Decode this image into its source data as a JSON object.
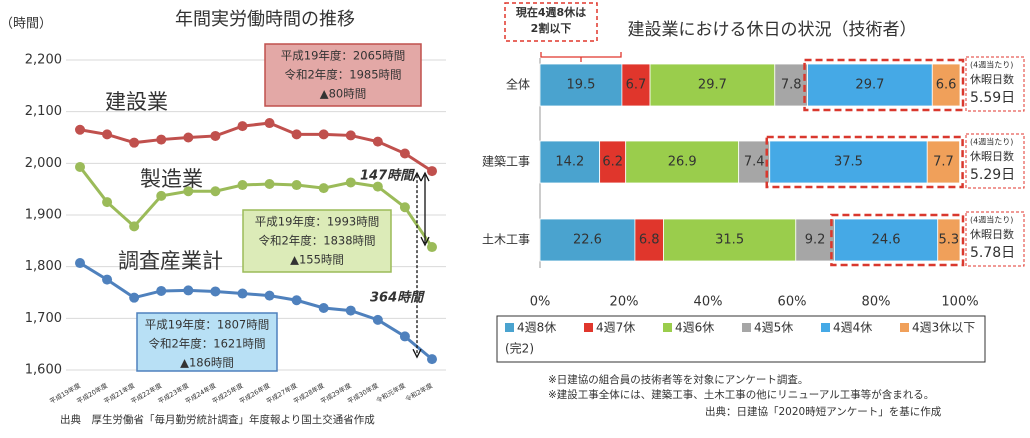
{
  "chart_data": [
    {
      "type": "line",
      "title": "年間実労働時間の推移",
      "y_label": "（時間）",
      "categories": [
        "平成19年度",
        "平成20年度",
        "平成21年度",
        "平成22年度",
        "平成23年度",
        "平成24年度",
        "平成25年度",
        "平成26年度",
        "平成27年度",
        "平成28年度",
        "平成29年度",
        "平成30年度",
        "令和元年度",
        "令和2年度"
      ],
      "series": [
        {
          "name": "建設業",
          "color": "#c0504d",
          "values": [
            2065,
            2056,
            2040,
            2046,
            2050,
            2053,
            2072,
            2078,
            2056,
            2056,
            2054,
            2042,
            2019,
            1985
          ]
        },
        {
          "name": "製造業",
          "color": "#9bbb59",
          "values": [
            1993,
            1925,
            1878,
            1937,
            1946,
            1946,
            1958,
            1960,
            1958,
            1952,
            1963,
            1955,
            1915,
            1838
          ]
        },
        {
          "name": "調査産業計",
          "color": "#4f81bd",
          "values": [
            1807,
            1775,
            1740,
            1753,
            1754,
            1752,
            1748,
            1744,
            1735,
            1720,
            1715,
            1697,
            1665,
            1621
          ]
        }
      ],
      "ylim": [
        1600,
        2200
      ],
      "yticks": [
        {
          "value": 1600,
          "label": "1,600"
        },
        {
          "value": 1700,
          "label": "1,700"
        },
        {
          "value": 1800,
          "label": "1,800"
        },
        {
          "value": 1900,
          "label": "1,900"
        },
        {
          "value": 2000,
          "label": "2,000"
        },
        {
          "value": 2100,
          "label": "2,100"
        },
        {
          "value": 2200,
          "label": "2,200"
        }
      ],
      "grid": true,
      "callouts": [
        [
          "平成19年度：2065時間",
          "令和2年度：1985時間",
          "▲80時間"
        ],
        [
          "平成19年度：1993時間",
          "令和2年度：1838時間",
          "▲155時間"
        ],
        [
          "平成19年度：1807時間",
          "令和2年度：1621時間",
          "▲186時間"
        ]
      ],
      "gaps": [
        "147時間",
        "364時間"
      ],
      "source": "出典　厚生労働省「毎月勤労統計調査」年度報より国土交通省作成"
    },
    {
      "type": "stacked_bar_horizontal",
      "title": "建設業における休日の状況（技術者）",
      "categories": [
        "全体",
        "建築工事",
        "土木工事"
      ],
      "series": [
        {
          "name": "4週8休",
          "color": "#4aa3cf",
          "values": [
            19.5,
            14.2,
            22.6
          ]
        },
        {
          "name": "4週7休",
          "color": "#e0362c",
          "values": [
            6.7,
            6.2,
            6.8
          ]
        },
        {
          "name": "4週6休",
          "color": "#9acd4c",
          "values": [
            29.7,
            26.9,
            31.5
          ]
        },
        {
          "name": "4週5休",
          "color": "#a6a6a6",
          "values": [
            7.8,
            7.4,
            9.2
          ]
        },
        {
          "name": "4週4休",
          "color": "#45a9e6",
          "values": [
            29.7,
            37.5,
            24.6
          ]
        },
        {
          "name": "4週3休以下",
          "color": "#f0a05a",
          "values": [
            6.6,
            7.7,
            5.3
          ]
        }
      ],
      "xlim": [
        0,
        100
      ],
      "xticks": [
        {
          "value": 0,
          "label": "0%"
        },
        {
          "value": 20,
          "label": "20%"
        },
        {
          "value": 40,
          "label": "40%"
        },
        {
          "value": 60,
          "label": "60%"
        },
        {
          "value": 80,
          "label": "80%"
        },
        {
          "value": 100,
          "label": "100%"
        }
      ],
      "legend_note": "(完2)",
      "callout": [
        "現在4週8休は",
        "2割以下"
      ],
      "side_notes": [
        [
          "(4週当たり)",
          "休暇日数",
          "5.59日"
        ],
        [
          "(4週当たり)",
          "休暇日数",
          "5.29日"
        ],
        [
          "(4週当たり)",
          "休暇日数",
          "5.78日"
        ]
      ],
      "notes": [
        "※日建協の組合員の技術者等を対象にアンケート調査。",
        "※建設工事全体には、建築工事、土木工事の他にリニューアル工事等が含まれる。"
      ],
      "source": "出典：日建協「2020時短アンケート」を基に作成"
    }
  ]
}
